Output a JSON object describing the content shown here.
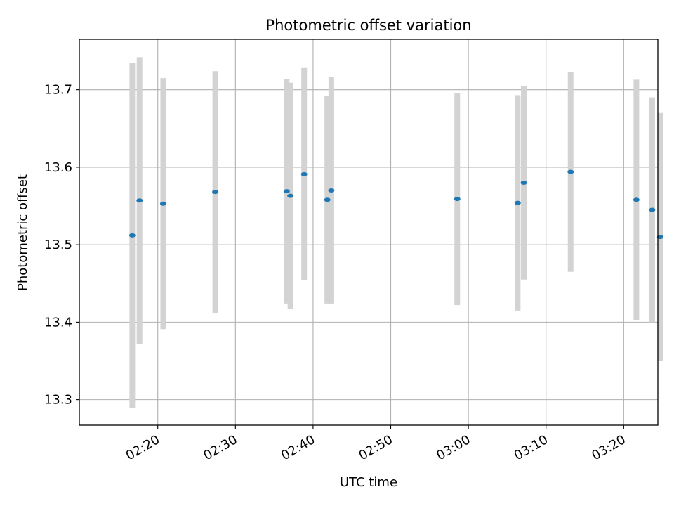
{
  "chart_data": {
    "type": "scatter",
    "title": "Photometric offset variation",
    "xlabel": "UTC time",
    "ylabel": "Photometric offset",
    "x_ticks": [
      "02:20",
      "02:30",
      "02:40",
      "02:50",
      "03:00",
      "03:10",
      "03:20"
    ],
    "x_tick_minutes": [
      140,
      150,
      160,
      170,
      180,
      190,
      200
    ],
    "xlim_minutes": [
      129.9,
      204.4
    ],
    "y_ticks": [
      13.3,
      13.4,
      13.5,
      13.6,
      13.7
    ],
    "ylim": [
      13.267,
      13.765
    ],
    "grid": true,
    "series": [
      {
        "marker": "point",
        "errorbars": true,
        "color": "#1f77b4",
        "errorbar_color": "#d3d3d3",
        "points": [
          {
            "t": "02:16:43",
            "y": 13.512,
            "err": 0.223
          },
          {
            "t": "02:17:39",
            "y": 13.557,
            "err": 0.185
          },
          {
            "t": "02:20:42",
            "y": 13.553,
            "err": 0.162
          },
          {
            "t": "02:27:24",
            "y": 13.568,
            "err": 0.156
          },
          {
            "t": "02:36:36",
            "y": 13.569,
            "err": 0.145
          },
          {
            "t": "02:37:05",
            "y": 13.563,
            "err": 0.146
          },
          {
            "t": "02:38:51",
            "y": 13.591,
            "err": 0.137
          },
          {
            "t": "02:41:50",
            "y": 13.558,
            "err": 0.134
          },
          {
            "t": "02:42:21",
            "y": 13.57,
            "err": 0.146
          },
          {
            "t": "02:58:34",
            "y": 13.559,
            "err": 0.137
          },
          {
            "t": "03:06:21",
            "y": 13.554,
            "err": 0.139
          },
          {
            "t": "03:07:08",
            "y": 13.58,
            "err": 0.125
          },
          {
            "t": "03:13:10",
            "y": 13.594,
            "err": 0.129
          },
          {
            "t": "03:21:38",
            "y": 13.558,
            "err": 0.155
          },
          {
            "t": "03:23:40",
            "y": 13.545,
            "err": 0.145
          },
          {
            "t": "03:24:42",
            "y": 13.51,
            "err": 0.16
          }
        ]
      }
    ]
  }
}
